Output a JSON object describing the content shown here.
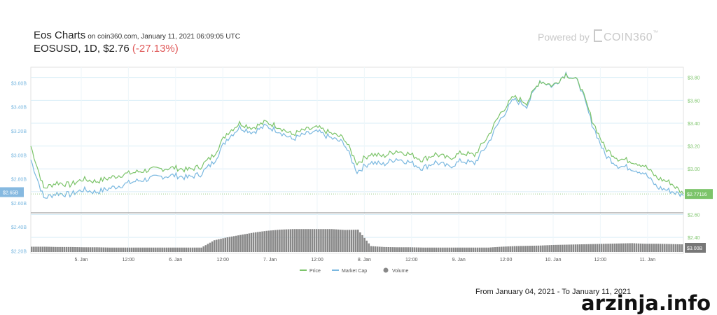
{
  "header": {
    "title": "Eos Charts",
    "subtitle": "on coin360.com, January 11, 2021 06:09:05 UTC",
    "pair": "EOSUSD, 1D, $2.76",
    "change": "(-27.13%)",
    "powered_label": "Powered by",
    "brand": "COIN360",
    "brand_mark": "™"
  },
  "footer": {
    "range_text": "From January 04, 2021 - To January 11, 2021"
  },
  "watermark": "arzinja.info",
  "colors": {
    "price": "#7cc46a",
    "market_cap": "#7ab8e0",
    "volume": "#888888",
    "change_negative": "#e05a5a",
    "current_price_badge": "#7cc46a",
    "current_mcap_badge": "#86b9e0",
    "volume_badge": "#777777"
  },
  "chart_data": {
    "type": "line",
    "x_ticks": [
      "5. Jan",
      "12:00",
      "6. Jan",
      "12:00",
      "7. Jan",
      "12:00",
      "8. Jan",
      "12:00",
      "9. Jan",
      "12:00",
      "10. Jan",
      "12:00",
      "11. Jan"
    ],
    "y_left_ticks": [
      "$3.60B",
      "$3.40B",
      "$3.20B",
      "$3.00B",
      "$2.80B",
      "$2.60B",
      "$2.40B",
      "$2.20B"
    ],
    "y_left_range": [
      2.18,
      3.73
    ],
    "y_right_ticks": [
      "$3.80",
      "$3.60",
      "$3.40",
      "$3.20",
      "$3.00",
      "$2.80",
      "$2.60",
      "$2.40"
    ],
    "y_right_range": [
      2.26,
      3.89
    ],
    "current_mcap_label": "$2.65B",
    "current_price_label": "$2.77116",
    "volume_label": "$3.00B",
    "x": [
      0,
      0.02,
      0.04,
      0.06,
      0.08,
      0.1,
      0.12,
      0.14,
      0.16,
      0.18,
      0.2,
      0.22,
      0.24,
      0.26,
      0.28,
      0.3,
      0.32,
      0.34,
      0.36,
      0.38,
      0.4,
      0.42,
      0.44,
      0.46,
      0.48,
      0.5,
      0.52,
      0.54,
      0.56,
      0.58,
      0.6,
      0.62,
      0.64,
      0.66,
      0.68,
      0.7,
      0.72,
      0.74,
      0.76,
      0.78,
      0.8,
      0.82,
      0.84,
      0.86,
      0.88,
      0.9,
      0.92,
      0.94,
      0.96,
      0.98,
      1.0
    ],
    "series": [
      {
        "name": "Price",
        "values": [
          3.2,
          2.83,
          2.88,
          2.86,
          2.91,
          2.89,
          2.92,
          2.95,
          2.97,
          2.99,
          3.0,
          3.01,
          2.99,
          3.02,
          3.12,
          3.31,
          3.4,
          3.36,
          3.41,
          3.37,
          3.3,
          3.34,
          3.36,
          3.31,
          3.27,
          3.05,
          3.13,
          3.11,
          3.16,
          3.13,
          3.08,
          3.13,
          3.09,
          3.14,
          3.12,
          3.28,
          3.49,
          3.63,
          3.58,
          3.77,
          3.73,
          3.83,
          3.76,
          3.43,
          3.18,
          3.09,
          3.07,
          3.03,
          2.92,
          2.88,
          2.78
        ]
      },
      {
        "name": "Market Cap",
        "values": [
          2.96,
          2.64,
          2.68,
          2.67,
          2.71,
          2.69,
          2.72,
          2.75,
          2.78,
          2.8,
          2.82,
          2.83,
          2.81,
          2.84,
          2.94,
          3.13,
          3.23,
          3.19,
          3.24,
          3.2,
          3.13,
          3.17,
          3.19,
          3.14,
          3.1,
          2.86,
          2.94,
          2.92,
          2.97,
          2.94,
          2.89,
          2.94,
          2.9,
          2.95,
          2.93,
          3.09,
          3.3,
          3.46,
          3.41,
          3.62,
          3.57,
          3.68,
          3.6,
          3.26,
          3.0,
          2.91,
          2.89,
          2.85,
          2.73,
          2.7,
          2.66
        ]
      },
      {
        "name": "Volume",
        "values": [
          0.18,
          0.18,
          0.17,
          0.17,
          0.16,
          0.16,
          0.15,
          0.15,
          0.15,
          0.15,
          0.15,
          0.15,
          0.15,
          0.15,
          0.4,
          0.5,
          0.58,
          0.66,
          0.72,
          0.76,
          0.78,
          0.78,
          0.78,
          0.78,
          0.75,
          0.76,
          0.2,
          0.17,
          0.16,
          0.16,
          0.15,
          0.15,
          0.15,
          0.15,
          0.15,
          0.15,
          0.18,
          0.2,
          0.21,
          0.22,
          0.24,
          0.25,
          0.26,
          0.27,
          0.28,
          0.29,
          0.3,
          0.28,
          0.28,
          0.27,
          0.26
        ]
      }
    ],
    "legend": [
      "Price",
      "Market Cap",
      "Volume"
    ],
    "legend_position": "bottom-center",
    "grid": true
  }
}
